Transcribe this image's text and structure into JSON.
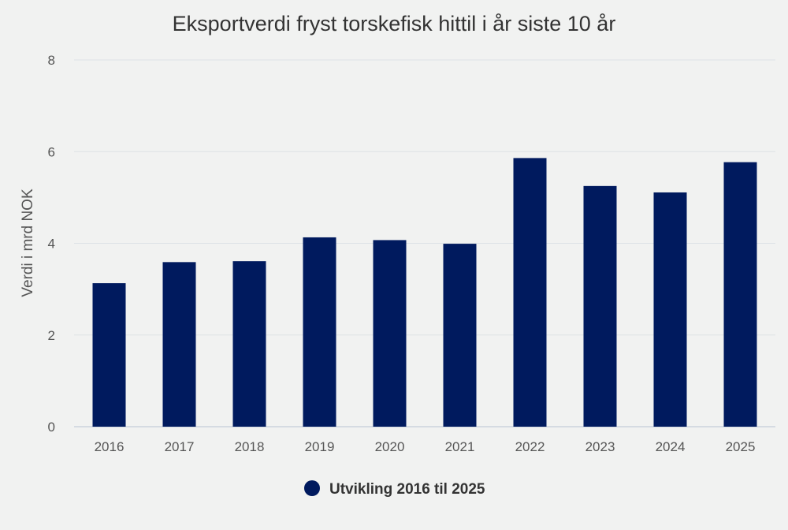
{
  "chart_data": {
    "type": "bar",
    "title": "Eksportverdi fryst torskefisk hittil i år siste 10 år",
    "xlabel": "",
    "ylabel": "Verdi i mrd NOK",
    "categories": [
      "2016",
      "2017",
      "2018",
      "2019",
      "2020",
      "2021",
      "2022",
      "2023",
      "2024",
      "2025"
    ],
    "series": [
      {
        "name": "Utvikling 2016 til 2025",
        "values": [
          3.13,
          3.59,
          3.61,
          4.13,
          4.07,
          3.99,
          5.86,
          5.25,
          5.11,
          5.77
        ],
        "color": "#001a5e"
      }
    ],
    "ylim": [
      0,
      8
    ],
    "yticks": [
      "0",
      "2",
      "4",
      "6",
      "8"
    ],
    "grid": true,
    "legend_position": "bottom-center"
  }
}
